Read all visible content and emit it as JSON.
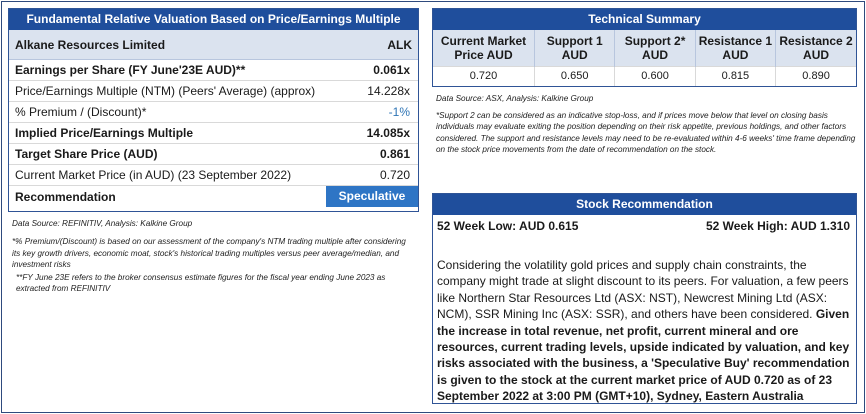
{
  "valuation": {
    "title": "Fundamental Relative Valuation Based on Price/Earnings Multiple",
    "company": "Alkane Resources Limited",
    "ticker": "ALK",
    "rows": [
      {
        "label": "Earnings per Share (FY June'23E AUD)**",
        "value": "0.061x"
      },
      {
        "label": "Price/Earnings Multiple (NTM)  (Peers' Average) (approx)",
        "value": "14.228x"
      },
      {
        "label": "% Premium / (Discount)*",
        "value": "-1%"
      },
      {
        "label": "Implied Price/Earnings Multiple",
        "value": "14.085x"
      },
      {
        "label": "Target Share Price (AUD)",
        "value": "0.861"
      },
      {
        "label": "Current Market Price (in AUD) (23 September 2022)",
        "value": "0.720"
      }
    ],
    "recommendation_label": "Recommendation",
    "recommendation_value": "Speculative Buy"
  },
  "left_notes": {
    "source": "Data Source: REFINITIV, Analysis: Kalkine Group",
    "note1": "*% Premium/(Discount) is based on our assessment of the company's NTM trading multiple after considering its key growth drivers, economic moat, stock's historical trading multiples versus peer average/median, and investment risks",
    "note2": "**FY June 23E refers to the broker consensus estimate figures for the fiscal year ending June 2023  as extracted from REFINITIV"
  },
  "technical": {
    "title": "Technical Summary",
    "headers": [
      "Current Market Price AUD",
      "Support 1 AUD",
      "Support 2* AUD",
      "Resistance 1 AUD",
      "Resistance 2 AUD"
    ],
    "values": [
      "0.720",
      "0.650",
      "0.600",
      "0.815",
      "0.890"
    ],
    "source": "Data Source: ASX, Analysis: Kalkine Group",
    "note": "*Support 2 can be considered as an indicative stop-loss, and if prices move below that level on closing basis individuals may evaluate exiting the position depending on their risk appetite, previous holdings, and other factors considered. The support and resistance levels may need to be re-evaluated within 4-6 weeks' time frame depending on the stock price movements from the date of recommendation on the stock."
  },
  "stock_rec": {
    "title": "Stock Recommendation",
    "week_low": "52 Week Low: AUD 0.615",
    "week_high": "52 Week High: AUD 1.310",
    "text_normal": "Considering the volatility gold prices and supply chain constraints, the company might trade at slight discount to its peers. For valuation, a few peers like Northern Star Resources Ltd (ASX: NST), Newcrest Mining Ltd (ASX: NCM), SSR Mining Inc (ASX: SSR), and others have been considered. ",
    "text_bold": "Given the increase in total revenue, net profit, current mineral and ore resources, current trading levels, upside indicated by valuation, and key risks associated with the business, a 'Speculative Buy' recommendation is given to the stock at the current market price of AUD 0.720 as of 23 September 2022 at 3:00 PM (GMT+10), Sydney, Eastern Australia"
  }
}
